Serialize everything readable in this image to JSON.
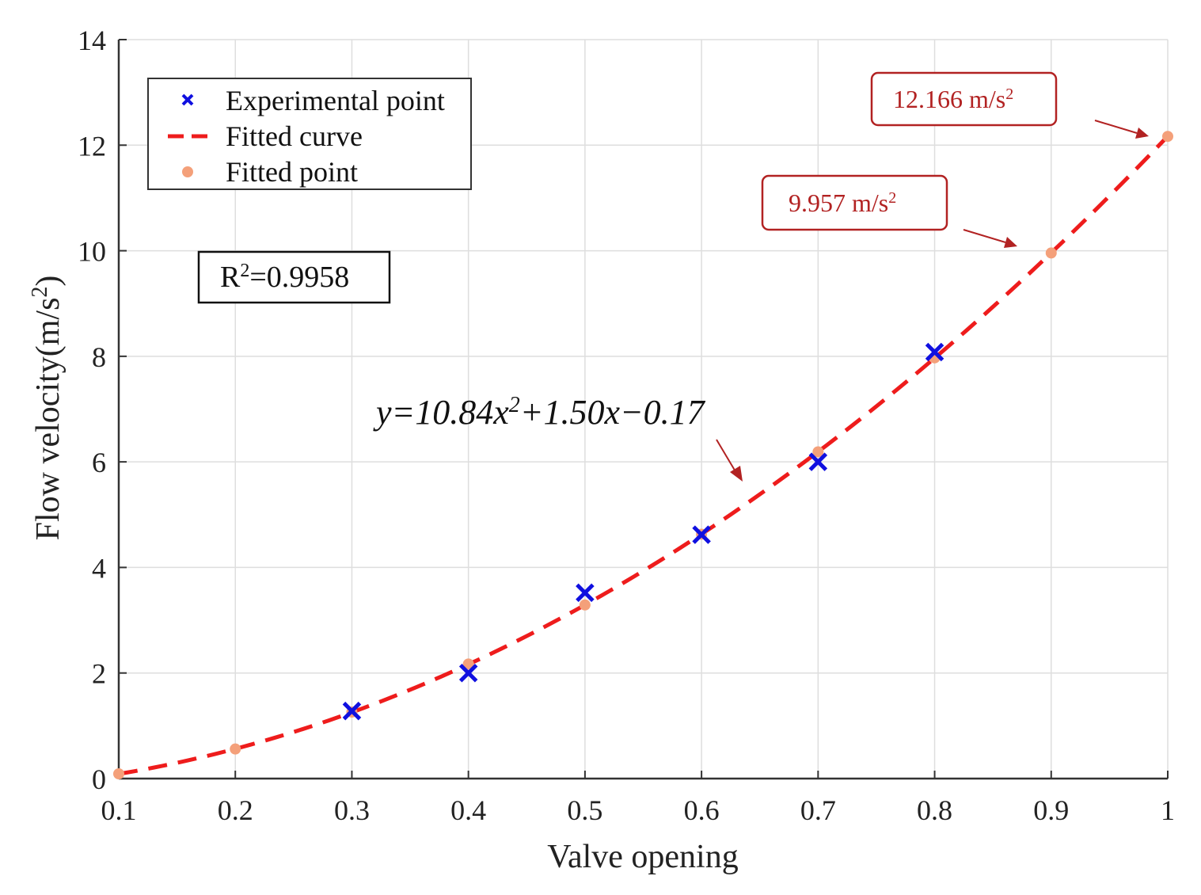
{
  "chart_data": {
    "type": "scatter",
    "title": "",
    "xlabel": "Valve opening",
    "ylabel_main": "Flow velocity(m/s",
    "ylabel_sup": "2",
    "ylabel_close": ")",
    "xlim": [
      0.1,
      1.0
    ],
    "ylim": [
      0,
      14
    ],
    "grid": true,
    "x_ticks": [
      "0.1",
      "0.2",
      "0.3",
      "0.4",
      "0.5",
      "0.6",
      "0.7",
      "0.8",
      "0.9",
      "1"
    ],
    "y_ticks": [
      "0",
      "2",
      "4",
      "6",
      "8",
      "10",
      "12",
      "14"
    ],
    "legend_position": "top-left",
    "series": [
      {
        "name": "Experimental point",
        "kind": "marker-x",
        "color": "#1010e0",
        "x": [
          0.3,
          0.4,
          0.5,
          0.6,
          0.7,
          0.8
        ],
        "y": [
          1.28,
          2.0,
          3.52,
          4.62,
          6.0,
          8.08
        ]
      },
      {
        "name": "Fitted curve",
        "kind": "dashed-line",
        "color": "#ee1c1c",
        "coefficients": [
          10.84,
          1.5,
          -0.17
        ],
        "x_range": [
          0.1,
          1.0
        ]
      },
      {
        "name": "Fitted point",
        "kind": "dot",
        "color": "#f4a07a",
        "x": [
          0.1,
          0.2,
          0.3,
          0.4,
          0.5,
          0.6,
          0.7,
          0.8,
          0.9,
          1.0
        ],
        "y": [
          0.09,
          0.56,
          1.26,
          2.17,
          3.29,
          4.63,
          6.19,
          7.97,
          9.957,
          12.166
        ]
      }
    ],
    "annotations": {
      "equation_prefix": "y=10.84x",
      "equation_sup": "2",
      "equation_suffix": "+1.50x−0.17",
      "r2_prefix": "R",
      "r2_sup": "2",
      "r2_suffix": "=0.9958",
      "callout_1_value": "12.166 m/s",
      "callout_1_sup": "2",
      "callout_2_value": "9.957 m/s",
      "callout_2_sup": "2"
    }
  },
  "colors": {
    "axis": "#333333",
    "grid": "#dedede",
    "callout": "#b22222"
  }
}
